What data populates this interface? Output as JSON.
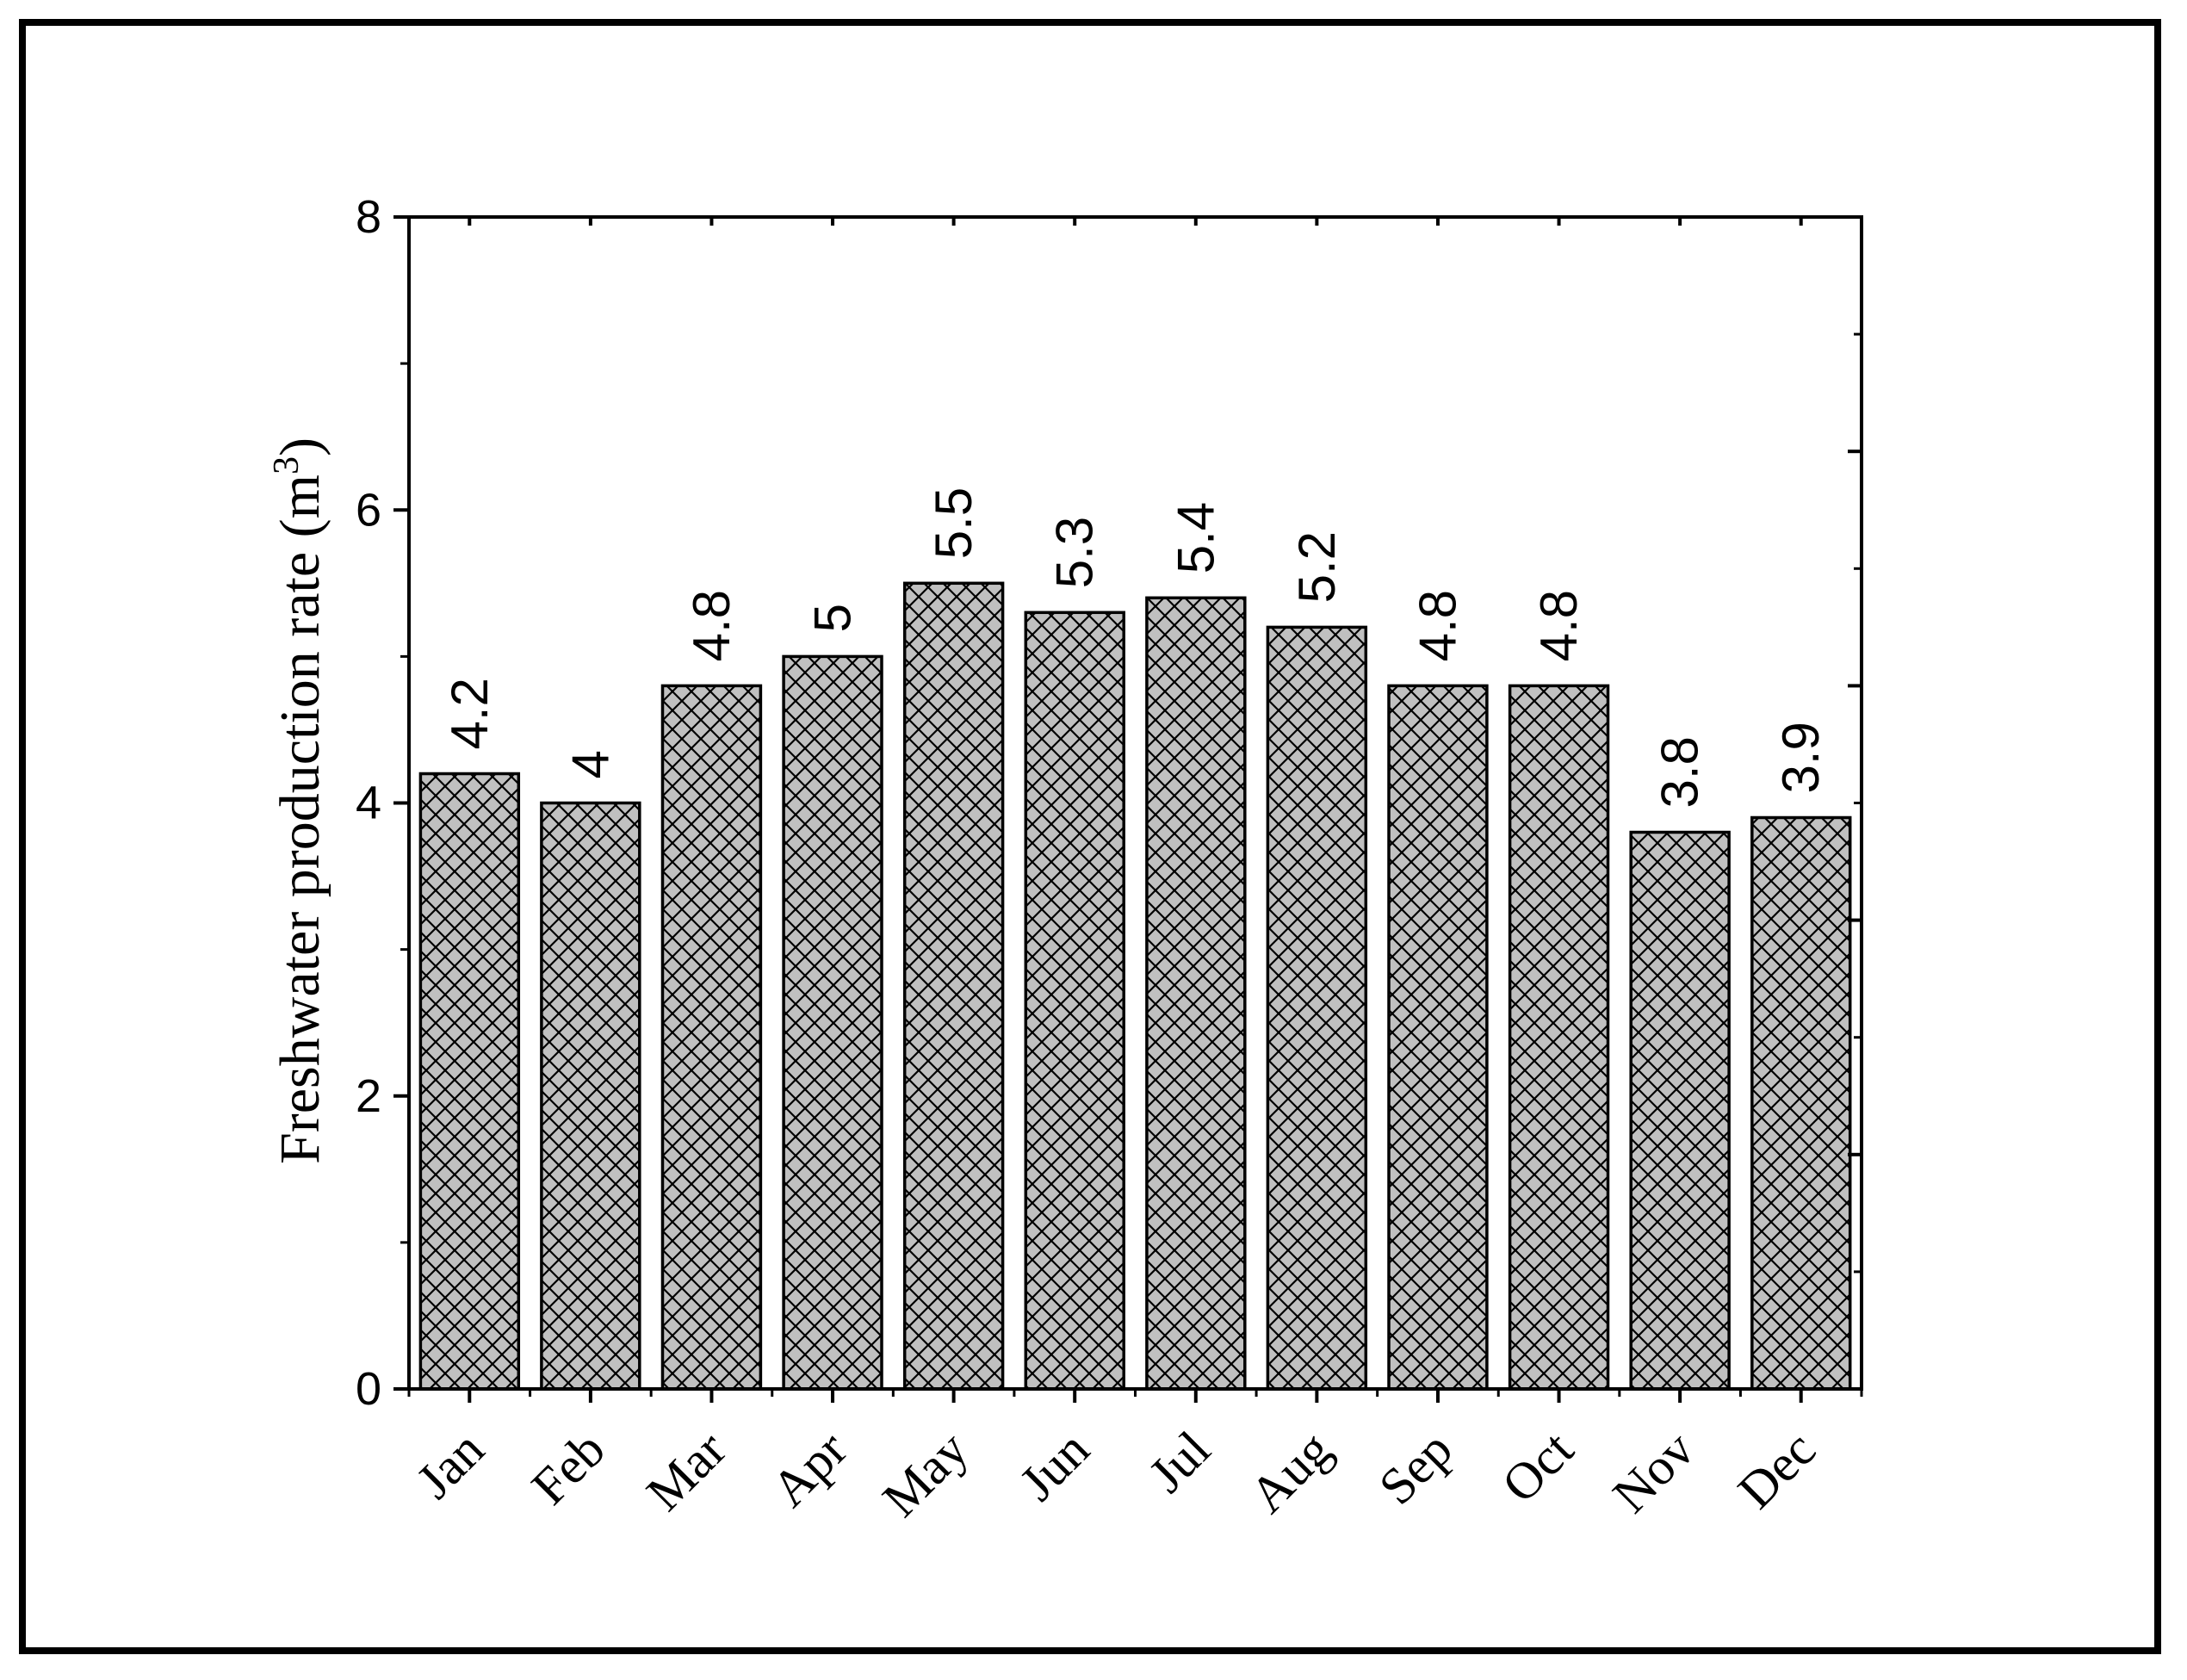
{
  "chart_data": {
    "type": "bar",
    "categories": [
      "Jan",
      "Feb",
      "Mar",
      "Apr",
      "May",
      "Jun",
      "Jul",
      "Aug",
      "Sep",
      "Oct",
      "Nov",
      "Dec"
    ],
    "values": [
      4.2,
      4,
      4.8,
      5,
      5.5,
      5.3,
      5.4,
      5.2,
      4.8,
      4.8,
      3.8,
      3.9
    ],
    "value_labels": [
      "4.2",
      "4",
      "4.8",
      "5",
      "5.5",
      "5.3",
      "5.4",
      "5.2",
      "4.8",
      "4.8",
      "3.8",
      "3.9"
    ],
    "title": "",
    "xlabel": "",
    "ylabel": "Freshwater production rate (m",
    "ylabel_superscript": "3",
    "ylabel_suffix": ")",
    "ylim": [
      0,
      8
    ],
    "yticks": [
      0,
      2,
      4,
      6,
      8
    ],
    "ytick_labels": [
      "0",
      "2",
      "4",
      "6",
      "8"
    ],
    "grid": false,
    "legend": "none",
    "bar_pattern": "crosshatch",
    "bar_fill_color": "#c0c0c0",
    "bar_hatch_color": "#000000",
    "bar_edge_color": "#000000"
  }
}
